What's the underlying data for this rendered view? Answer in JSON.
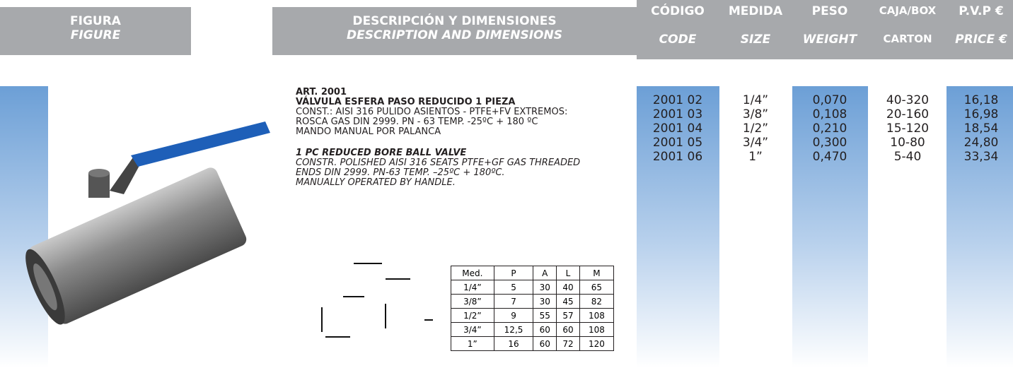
{
  "header": {
    "figure": {
      "es": "FIGURA",
      "en": "FIGURE"
    },
    "description": {
      "es": "DESCRIPCIÓN Y DIMENSIONES",
      "en": "DESCRIPTION AND DIMENSIONS"
    },
    "columns": [
      {
        "es": "CÓDIGO",
        "en": "CODE"
      },
      {
        "es": "MEDIDA",
        "en": "SIZE"
      },
      {
        "es": "PESO",
        "en": "WEIGHT"
      },
      {
        "es": "CAJA/BOX",
        "en": "CARTON"
      },
      {
        "es": "P.V.P €",
        "en": "PRICE €"
      }
    ]
  },
  "product": {
    "article": "ART. 2001",
    "title_es": "VÁLVULA ESFERA PASO REDUCIDO 1 PIEZA",
    "lines_es": [
      "CONST.: AISI 316 PULIDO ASIENTOS - PTFE+FV EXTREMOS:",
      "ROSCA GAS DIN 2999. PN - 63 TEMP. -25ºC + 180 ºC",
      "MANDO MANUAL POR PALANCA"
    ],
    "title_en": "1 PC REDUCED BORE BALL VALVE",
    "lines_en": [
      "CONSTR. POLISHED AISI 316 SEATS PTFE+GF GAS THREADED",
      "ENDS DIN 2999. PN-63 TEMP. –25ºC + 180ºC.",
      "MANUALLY OPERATED BY HANDLE."
    ]
  },
  "rows": [
    [
      "2001 02",
      "1/4”",
      "0,070",
      "40-320",
      "16,18"
    ],
    [
      "2001 03",
      "3/8”",
      "0,108",
      "20-160",
      "16,98"
    ],
    [
      "2001 04",
      "1/2”",
      "0,210",
      "15-120",
      "18,54"
    ],
    [
      "2001 05",
      "3/4”",
      "0,300",
      "10-80",
      "24,80"
    ],
    [
      "2001 06",
      "1”",
      "0,470",
      "5-40",
      "33,34"
    ]
  ],
  "dimensions": {
    "headers": [
      "Med.",
      "P",
      "A",
      "L",
      "M"
    ],
    "rows": [
      [
        "1/4”",
        "5",
        "30",
        "40",
        "65"
      ],
      [
        "3/8”",
        "7",
        "30",
        "45",
        "82"
      ],
      [
        "1/2”",
        "9",
        "55",
        "57",
        "108"
      ],
      [
        "3/4”",
        "12,5",
        "60",
        "60",
        "108"
      ],
      [
        "1”",
        "16",
        "60",
        "72",
        "120"
      ]
    ]
  }
}
